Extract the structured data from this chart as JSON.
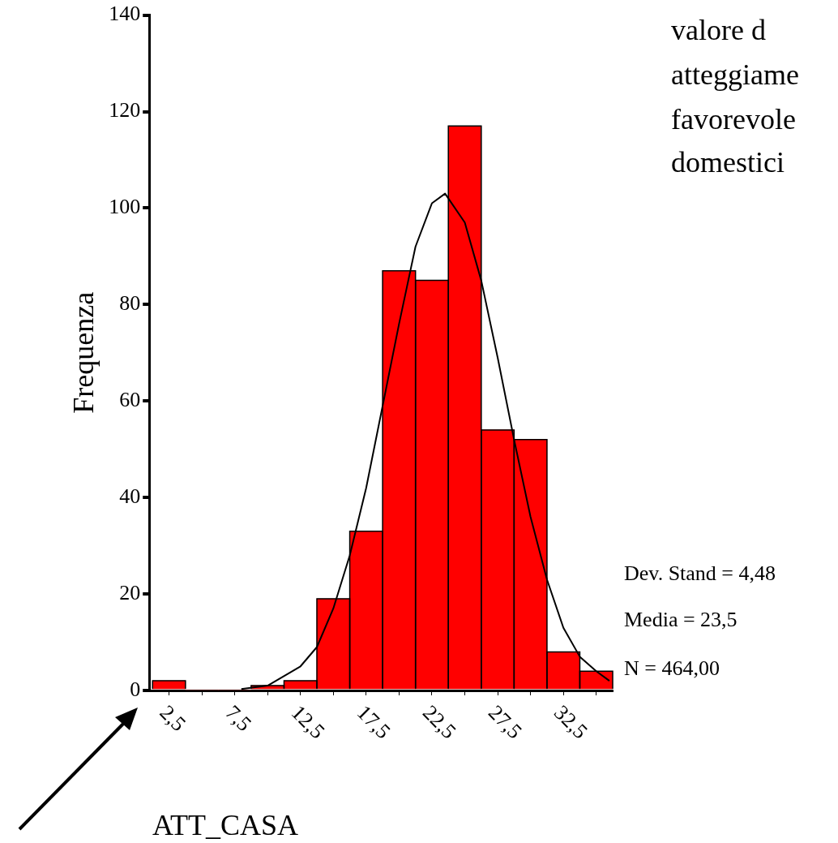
{
  "chart_data": {
    "type": "histogram",
    "xlabel": "ATT_CASA",
    "ylabel": "Frequenza",
    "bins": [
      1.25,
      3.75,
      6.25,
      8.75,
      11.25,
      13.75,
      16.25,
      18.75,
      21.25,
      23.75,
      26.25,
      28.75,
      31.25,
      33.75,
      36.25
    ],
    "values": [
      2,
      0,
      0,
      1,
      2,
      19,
      33,
      87,
      85,
      117,
      54,
      52,
      8,
      4
    ],
    "color": "#ff0000",
    "series": [
      {
        "type": "line",
        "color": "#000000",
        "x": [
          8,
          10,
          12.5,
          13.75,
          15,
          16.25,
          17.5,
          18.75,
          20,
          21.25,
          22.5,
          23.5,
          25,
          26.25,
          27.5,
          28.75,
          30,
          31.25,
          32.5,
          33.75,
          35,
          36
        ],
        "values": [
          0.3,
          1,
          5,
          9,
          17,
          28,
          42,
          59,
          76,
          92,
          101,
          103,
          97,
          85,
          69,
          52,
          36,
          23,
          13,
          7,
          4,
          2
        ]
      }
    ],
    "xlim": [
      1,
      36.25
    ],
    "xticks": [
      {
        "value": 2.5,
        "label": "2,5"
      },
      {
        "value": 5,
        "label": null
      },
      {
        "value": 7.5,
        "label": "7,5"
      },
      {
        "value": 10,
        "label": null
      },
      {
        "value": 12.5,
        "label": "12,5"
      },
      {
        "value": 15,
        "label": null
      },
      {
        "value": 17.5,
        "label": "17,5"
      },
      {
        "value": 20,
        "label": null
      },
      {
        "value": 22.5,
        "label": "22,5"
      },
      {
        "value": 25,
        "label": null
      },
      {
        "value": 27.5,
        "label": "27,5"
      },
      {
        "value": 30,
        "label": null
      },
      {
        "value": 32.5,
        "label": "32,5"
      },
      {
        "value": 35,
        "label": null
      }
    ],
    "ylim": [
      0,
      140
    ],
    "yticks": [
      0,
      20,
      40,
      60,
      80,
      100,
      120,
      140
    ],
    "grid": false,
    "annotations": [
      "Dev. Stand = 4,48",
      "Media = 23,5",
      "N = 464,00",
      "valore d",
      "atteggiame",
      "favorevole",
      "domestici"
    ]
  }
}
